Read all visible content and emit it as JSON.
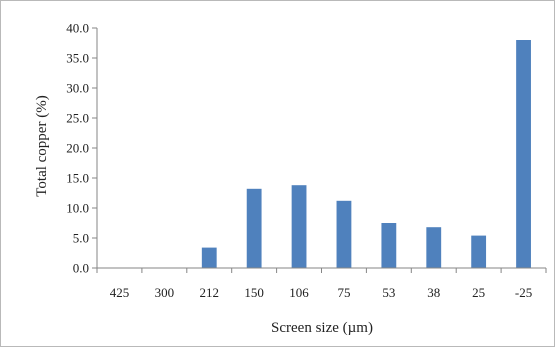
{
  "chart_data": {
    "type": "bar",
    "categories": [
      "425",
      "300",
      "212",
      "150",
      "106",
      "75",
      "53",
      "38",
      "25",
      "-25"
    ],
    "values": [
      0.0,
      0.0,
      3.4,
      13.2,
      13.8,
      11.2,
      7.5,
      6.8,
      5.4,
      38.0
    ],
    "xlabel": "Screen size (µm)",
    "ylabel": "Total copper (%)",
    "ylim": [
      0,
      40
    ],
    "yticks": [
      "0.0",
      "5.0",
      "10.0",
      "15.0",
      "20.0",
      "25.0",
      "30.0",
      "35.0",
      "40.0"
    ],
    "grid": false,
    "legend": "none",
    "bar_color": "#4F81BD"
  }
}
